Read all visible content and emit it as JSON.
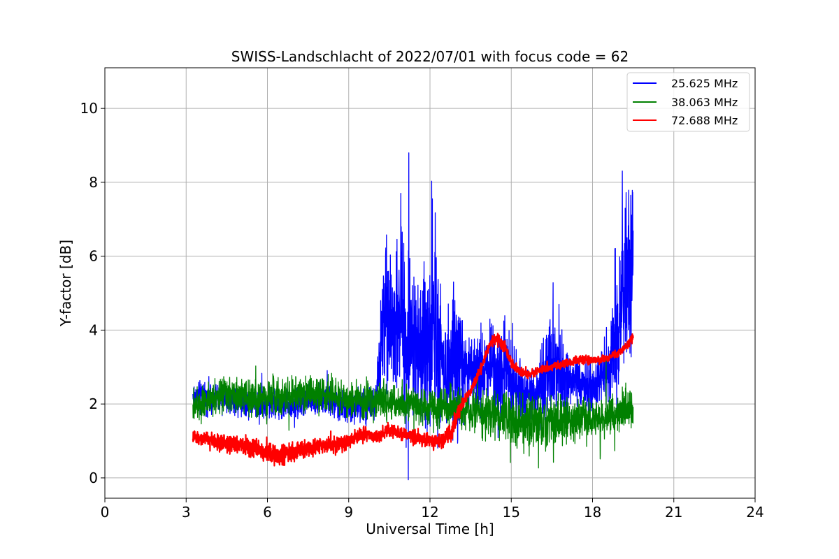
{
  "chart_data": {
    "type": "line",
    "title": "SWISS-Landschlacht of 2022/07/01 with focus code = 62",
    "xlabel": "Universal Time [h]",
    "ylabel": "Y-factor [dB]",
    "xlim": [
      0,
      24
    ],
    "ylim": [
      -0.55,
      11.1
    ],
    "xticks": [
      0,
      3,
      6,
      9,
      12,
      15,
      18,
      21,
      24
    ],
    "yticks": [
      0,
      2,
      4,
      6,
      8,
      10
    ],
    "grid": true,
    "legend_position": "top-right",
    "series": [
      {
        "name": "25.625 MHz",
        "color": "#0000ff",
        "x": [
          3.25,
          4.0,
          5.0,
          6.0,
          7.0,
          8.0,
          9.0,
          10.0,
          10.3,
          10.6,
          10.9,
          11.1,
          11.5,
          12.0,
          12.2,
          12.5,
          13.0,
          13.3,
          13.6,
          14.0,
          14.4,
          14.8,
          15.2,
          15.6,
          16.0,
          16.5,
          17.0,
          17.5,
          18.0,
          18.3,
          18.6,
          18.9,
          19.1,
          19.3,
          19.5
        ],
        "y": [
          2.2,
          2.2,
          2.1,
          2.0,
          2.0,
          2.1,
          1.9,
          2.0,
          4.5,
          4.0,
          4.8,
          4.0,
          3.5,
          3.8,
          4.2,
          3.0,
          3.5,
          2.8,
          2.8,
          2.9,
          3.1,
          2.8,
          2.5,
          2.3,
          2.3,
          3.0,
          2.6,
          2.5,
          2.4,
          2.7,
          3.0,
          3.8,
          5.0,
          5.5,
          6.0
        ],
        "amp": [
          0.6,
          0.6,
          0.6,
          0.6,
          0.6,
          0.6,
          0.6,
          0.8,
          3.2,
          2.0,
          3.8,
          4.5,
          1.8,
          4.0,
          5.0,
          1.5,
          3.5,
          1.2,
          1.2,
          1.8,
          2.2,
          1.6,
          1.4,
          1.0,
          1.0,
          2.5,
          1.3,
          1.0,
          1.0,
          1.2,
          1.5,
          2.3,
          3.0,
          3.5,
          3.6
        ]
      },
      {
        "name": "38.063 MHz",
        "color": "#008000",
        "x": [
          3.25,
          4.0,
          5.0,
          6.0,
          7.0,
          8.0,
          9.0,
          10.0,
          11.0,
          12.0,
          13.0,
          14.0,
          15.0,
          15.5,
          16.0,
          17.0,
          18.0,
          18.5,
          19.0,
          19.5
        ],
        "y": [
          2.0,
          2.2,
          2.2,
          2.2,
          2.2,
          2.3,
          2.1,
          2.1,
          2.0,
          1.9,
          1.9,
          1.8,
          1.6,
          1.4,
          1.5,
          1.6,
          1.6,
          1.7,
          1.8,
          1.9
        ],
        "amp": [
          0.7,
          0.7,
          0.7,
          0.8,
          0.7,
          0.7,
          0.7,
          0.7,
          0.7,
          0.7,
          0.8,
          0.9,
          1.0,
          1.0,
          1.1,
          0.9,
          0.8,
          0.8,
          0.8,
          0.8
        ]
      },
      {
        "name": "72.688 MHz",
        "color": "#ff0000",
        "x": [
          3.25,
          3.5,
          4.0,
          4.5,
          5.0,
          5.5,
          6.0,
          6.5,
          7.0,
          7.5,
          8.0,
          8.5,
          9.0,
          9.5,
          10.0,
          10.5,
          11.0,
          11.5,
          12.0,
          12.5,
          12.8,
          13.0,
          13.2,
          13.5,
          13.8,
          14.0,
          14.2,
          14.5,
          14.8,
          15.0,
          15.3,
          15.6,
          16.0,
          16.5,
          17.0,
          17.5,
          18.0,
          18.5,
          19.0,
          19.3,
          19.5
        ],
        "y": [
          1.1,
          1.1,
          1.0,
          0.9,
          0.9,
          0.8,
          0.7,
          0.6,
          0.7,
          0.8,
          0.9,
          0.9,
          1.0,
          1.2,
          1.1,
          1.3,
          1.2,
          1.1,
          1.0,
          1.0,
          1.2,
          1.7,
          2.0,
          2.4,
          2.8,
          3.2,
          3.6,
          3.8,
          3.5,
          3.1,
          2.9,
          2.8,
          2.9,
          3.0,
          3.1,
          3.2,
          3.2,
          3.2,
          3.4,
          3.6,
          3.8
        ],
        "amp": [
          0.25,
          0.25,
          0.3,
          0.35,
          0.35,
          0.4,
          0.45,
          0.45,
          0.35,
          0.3,
          0.3,
          0.35,
          0.3,
          0.3,
          0.25,
          0.25,
          0.3,
          0.3,
          0.3,
          0.3,
          0.35,
          0.3,
          0.3,
          0.2,
          0.2,
          0.2,
          0.2,
          0.25,
          0.2,
          0.2,
          0.15,
          0.15,
          0.15,
          0.15,
          0.15,
          0.15,
          0.15,
          0.15,
          0.15,
          0.15,
          0.15
        ]
      }
    ]
  }
}
